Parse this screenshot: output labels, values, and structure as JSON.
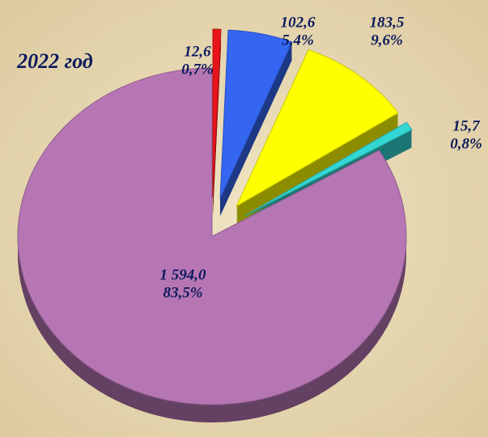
{
  "chart_data": {
    "type": "pie",
    "title": "2022 год",
    "categories": [
      null,
      null,
      null,
      null,
      null
    ],
    "values": [
      1594.0,
      12.6,
      102.6,
      183.5,
      15.7
    ],
    "value_labels": [
      "1 594,0",
      "12,6",
      "102,6",
      "183,5",
      "15,7"
    ],
    "percents": [
      83.5,
      0.7,
      5.4,
      9.6,
      0.8
    ],
    "percent_labels": [
      "83,5%",
      "0,7%",
      "5,4%",
      "9,6%",
      "0,8%"
    ],
    "colors": [
      "#b676b4",
      "#e8141c",
      "#3466f2",
      "#ffff00",
      "#33d6d2"
    ]
  }
}
